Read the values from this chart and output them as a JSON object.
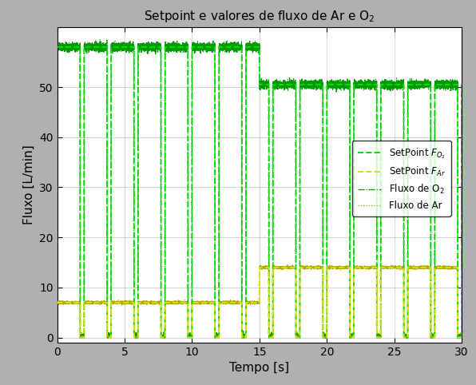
{
  "title": "Setpoint e valores de fluxo de Ar e O$_2$",
  "xlabel": "Tempo [s]",
  "ylabel": "Fluxo [L/min]",
  "xlim": [
    0,
    30
  ],
  "ylim": [
    -1,
    62
  ],
  "yticks": [
    0,
    10,
    20,
    30,
    40,
    50
  ],
  "xticks": [
    0,
    5,
    10,
    15,
    20,
    25,
    30
  ],
  "bg_color": "#b0b0b0",
  "plot_bg_color": "#ffffff",
  "sp_o2_high_phase1": 58.0,
  "sp_o2_high_phase2": 50.5,
  "sp_ar_high_phase1": 7.0,
  "sp_ar_high_phase2": 14.0,
  "period": 2.0,
  "duty_on": 0.85,
  "duty_off": 0.15,
  "phase1_end": 15.0,
  "t_end": 30.0,
  "sp_o2_color": "#00dd00",
  "sp_ar_color": "#dddd00",
  "fl_o2_color": "#009900",
  "fl_ar_color": "#aaaa00",
  "noise_o2": 0.4,
  "noise_ar": 0.15,
  "figwidth": 5.96,
  "figheight": 4.82,
  "dpi": 100
}
